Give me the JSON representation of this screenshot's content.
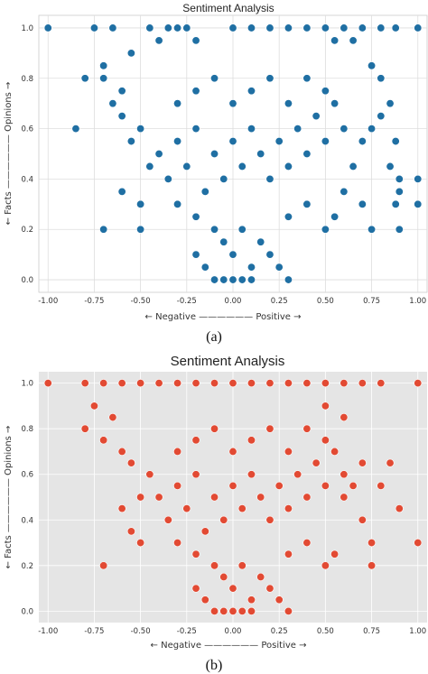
{
  "figure": {
    "captions": [
      "(a)",
      "(b)"
    ]
  },
  "chart_data": [
    {
      "type": "scatter",
      "panel": "(a)",
      "title": "Sentiment Analysis",
      "xlabel": "← Negative —————— Positive →",
      "ylabel": "← Facts —————— Opinions →",
      "xlim": [
        -1.05,
        1.05
      ],
      "ylim": [
        -0.05,
        1.05
      ],
      "xticks": [
        "-1.00",
        "-0.75",
        "-0.50",
        "-0.25",
        "0.00",
        "0.25",
        "0.50",
        "0.75",
        "1.00"
      ],
      "yticks": [
        "0.0",
        "0.2",
        "0.4",
        "0.6",
        "0.8",
        "1.0"
      ],
      "grid": true,
      "style": "whitegrid",
      "point_color": "#1f6fa3",
      "background": "#ffffff",
      "grid_color": "#dddddd",
      "series": [
        {
          "points": [
            [
              -1.0,
              1.0
            ],
            [
              -0.85,
              0.6
            ],
            [
              -0.7,
              0.2
            ],
            [
              -0.5,
              0.2
            ],
            [
              -0.6,
              0.35
            ],
            [
              -0.5,
              0.3
            ],
            [
              -0.8,
              0.8
            ],
            [
              -0.75,
              1.0
            ],
            [
              -0.7,
              0.85
            ],
            [
              -0.65,
              1.0
            ],
            [
              -0.6,
              0.75
            ],
            [
              -0.55,
              0.9
            ],
            [
              -0.45,
              1.0
            ],
            [
              -0.4,
              0.95
            ],
            [
              -0.35,
              1.0
            ],
            [
              -0.3,
              1.0
            ],
            [
              -0.25,
              1.0
            ],
            [
              -0.2,
              0.95
            ],
            [
              0.0,
              1.0
            ],
            [
              0.1,
              1.0
            ],
            [
              0.2,
              1.0
            ],
            [
              0.3,
              1.0
            ],
            [
              0.4,
              1.0
            ],
            [
              0.5,
              1.0
            ],
            [
              0.55,
              0.95
            ],
            [
              0.6,
              1.0
            ],
            [
              0.65,
              0.95
            ],
            [
              0.7,
              1.0
            ],
            [
              0.8,
              1.0
            ],
            [
              0.88,
              1.0
            ],
            [
              1.0,
              1.0
            ],
            [
              0.75,
              0.85
            ],
            [
              0.8,
              0.8
            ],
            [
              0.85,
              0.7
            ],
            [
              0.88,
              0.55
            ],
            [
              0.9,
              0.4
            ],
            [
              0.88,
              0.3
            ],
            [
              0.9,
              0.2
            ],
            [
              0.75,
              0.2
            ],
            [
              0.7,
              0.3
            ],
            [
              1.0,
              0.4
            ],
            [
              0.9,
              0.35
            ],
            [
              1.0,
              0.3
            ],
            [
              -0.4,
              0.5
            ],
            [
              -0.35,
              0.4
            ],
            [
              -0.3,
              0.55
            ],
            [
              -0.25,
              0.45
            ],
            [
              -0.2,
              0.6
            ],
            [
              -0.15,
              0.35
            ],
            [
              -0.1,
              0.5
            ],
            [
              -0.05,
              0.4
            ],
            [
              0.0,
              0.55
            ],
            [
              0.05,
              0.45
            ],
            [
              0.1,
              0.6
            ],
            [
              0.15,
              0.5
            ],
            [
              0.2,
              0.4
            ],
            [
              0.25,
              0.55
            ],
            [
              0.3,
              0.45
            ],
            [
              0.35,
              0.6
            ],
            [
              0.4,
              0.5
            ],
            [
              0.45,
              0.65
            ],
            [
              0.5,
              0.55
            ],
            [
              0.55,
              0.7
            ],
            [
              0.6,
              0.6
            ],
            [
              -0.3,
              0.7
            ],
            [
              -0.2,
              0.75
            ],
            [
              -0.1,
              0.8
            ],
            [
              0.0,
              0.7
            ],
            [
              0.1,
              0.75
            ],
            [
              0.2,
              0.8
            ],
            [
              0.3,
              0.7
            ],
            [
              0.4,
              0.8
            ],
            [
              0.5,
              0.75
            ],
            [
              -0.1,
              0.2
            ],
            [
              -0.05,
              0.15
            ],
            [
              0.0,
              0.1
            ],
            [
              0.05,
              0.2
            ],
            [
              0.1,
              0.05
            ],
            [
              0.15,
              0.15
            ],
            [
              0.2,
              0.1
            ],
            [
              -0.15,
              0.05
            ],
            [
              -0.2,
              0.1
            ],
            [
              0.0,
              0.0
            ],
            [
              -0.05,
              0.0
            ],
            [
              0.05,
              0.0
            ],
            [
              0.1,
              0.0
            ],
            [
              -0.1,
              0.0
            ],
            [
              0.3,
              0.0
            ],
            [
              0.25,
              0.05
            ],
            [
              -0.2,
              0.25
            ],
            [
              0.3,
              0.25
            ],
            [
              0.4,
              0.3
            ],
            [
              -0.3,
              0.3
            ],
            [
              0.5,
              0.2
            ],
            [
              0.55,
              0.25
            ],
            [
              -0.45,
              0.45
            ],
            [
              -0.5,
              0.6
            ],
            [
              -0.55,
              0.55
            ],
            [
              -0.6,
              0.65
            ],
            [
              -0.65,
              0.7
            ],
            [
              -0.7,
              0.8
            ],
            [
              0.65,
              0.45
            ],
            [
              0.7,
              0.55
            ],
            [
              0.75,
              0.6
            ],
            [
              0.8,
              0.65
            ],
            [
              0.85,
              0.45
            ],
            [
              0.6,
              0.35
            ]
          ]
        }
      ]
    },
    {
      "type": "scatter",
      "panel": "(b)",
      "title": "Sentiment Analysis",
      "xlabel": "← Negative —————— Positive →",
      "ylabel": "← Facts —————— Opinions →",
      "xlim": [
        -1.05,
        1.05
      ],
      "ylim": [
        -0.05,
        1.05
      ],
      "xticks": [
        "-1.00",
        "-0.75",
        "-0.50",
        "-0.25",
        "0.00",
        "0.25",
        "0.50",
        "0.75",
        "1.00"
      ],
      "yticks": [
        "0.0",
        "0.2",
        "0.4",
        "0.6",
        "0.8",
        "1.0"
      ],
      "grid": true,
      "style": "ggplot",
      "point_color": "#e24a33",
      "background": "#e5e5e5",
      "grid_color": "#ffffff",
      "series": [
        {
          "points": [
            [
              -1.0,
              1.0
            ],
            [
              -0.8,
              1.0
            ],
            [
              -0.7,
              1.0
            ],
            [
              -0.6,
              1.0
            ],
            [
              -0.5,
              1.0
            ],
            [
              -0.4,
              1.0
            ],
            [
              -0.3,
              1.0
            ],
            [
              -0.2,
              1.0
            ],
            [
              -0.1,
              1.0
            ],
            [
              0.0,
              1.0
            ],
            [
              0.1,
              1.0
            ],
            [
              0.2,
              1.0
            ],
            [
              0.3,
              1.0
            ],
            [
              0.4,
              1.0
            ],
            [
              0.5,
              1.0
            ],
            [
              0.6,
              1.0
            ],
            [
              0.7,
              1.0
            ],
            [
              0.8,
              1.0
            ],
            [
              1.0,
              1.0
            ],
            [
              -0.7,
              0.2
            ],
            [
              -0.5,
              0.3
            ],
            [
              -0.55,
              0.35
            ],
            [
              -0.8,
              0.8
            ],
            [
              -0.75,
              0.9
            ],
            [
              -0.7,
              0.75
            ],
            [
              -0.65,
              0.85
            ],
            [
              -0.6,
              0.7
            ],
            [
              -0.55,
              0.65
            ],
            [
              1.0,
              0.3
            ],
            [
              0.9,
              0.45
            ],
            [
              0.75,
              0.3
            ],
            [
              0.75,
              0.2
            ],
            [
              0.8,
              0.55
            ],
            [
              0.85,
              0.65
            ],
            [
              0.7,
              0.4
            ],
            [
              -0.4,
              0.5
            ],
            [
              -0.35,
              0.4
            ],
            [
              -0.3,
              0.55
            ],
            [
              -0.25,
              0.45
            ],
            [
              -0.2,
              0.6
            ],
            [
              -0.15,
              0.35
            ],
            [
              -0.1,
              0.5
            ],
            [
              -0.05,
              0.4
            ],
            [
              0.0,
              0.55
            ],
            [
              0.05,
              0.45
            ],
            [
              0.1,
              0.6
            ],
            [
              0.15,
              0.5
            ],
            [
              0.2,
              0.4
            ],
            [
              0.25,
              0.55
            ],
            [
              0.3,
              0.45
            ],
            [
              0.35,
              0.6
            ],
            [
              0.4,
              0.5
            ],
            [
              0.45,
              0.65
            ],
            [
              0.5,
              0.55
            ],
            [
              0.55,
              0.7
            ],
            [
              0.6,
              0.6
            ],
            [
              -0.3,
              0.7
            ],
            [
              -0.2,
              0.75
            ],
            [
              -0.1,
              0.8
            ],
            [
              0.0,
              0.7
            ],
            [
              0.1,
              0.75
            ],
            [
              0.2,
              0.8
            ],
            [
              0.3,
              0.7
            ],
            [
              0.4,
              0.8
            ],
            [
              0.5,
              0.75
            ],
            [
              -0.1,
              0.2
            ],
            [
              -0.05,
              0.15
            ],
            [
              0.0,
              0.1
            ],
            [
              0.05,
              0.2
            ],
            [
              0.1,
              0.05
            ],
            [
              0.15,
              0.15
            ],
            [
              0.2,
              0.1
            ],
            [
              -0.15,
              0.05
            ],
            [
              -0.2,
              0.1
            ],
            [
              0.0,
              0.0
            ],
            [
              -0.05,
              0.0
            ],
            [
              0.05,
              0.0
            ],
            [
              0.1,
              0.0
            ],
            [
              -0.1,
              0.0
            ],
            [
              0.3,
              0.0
            ],
            [
              0.25,
              0.05
            ],
            [
              -0.2,
              0.25
            ],
            [
              0.3,
              0.25
            ],
            [
              0.4,
              0.3
            ],
            [
              -0.3,
              0.3
            ],
            [
              0.5,
              0.2
            ],
            [
              0.55,
              0.25
            ],
            [
              0.6,
              0.5
            ],
            [
              0.65,
              0.55
            ],
            [
              -0.45,
              0.6
            ],
            [
              -0.5,
              0.5
            ],
            [
              -0.6,
              0.45
            ],
            [
              0.7,
              0.65
            ],
            [
              0.6,
              0.85
            ],
            [
              0.5,
              0.9
            ]
          ]
        }
      ]
    }
  ]
}
